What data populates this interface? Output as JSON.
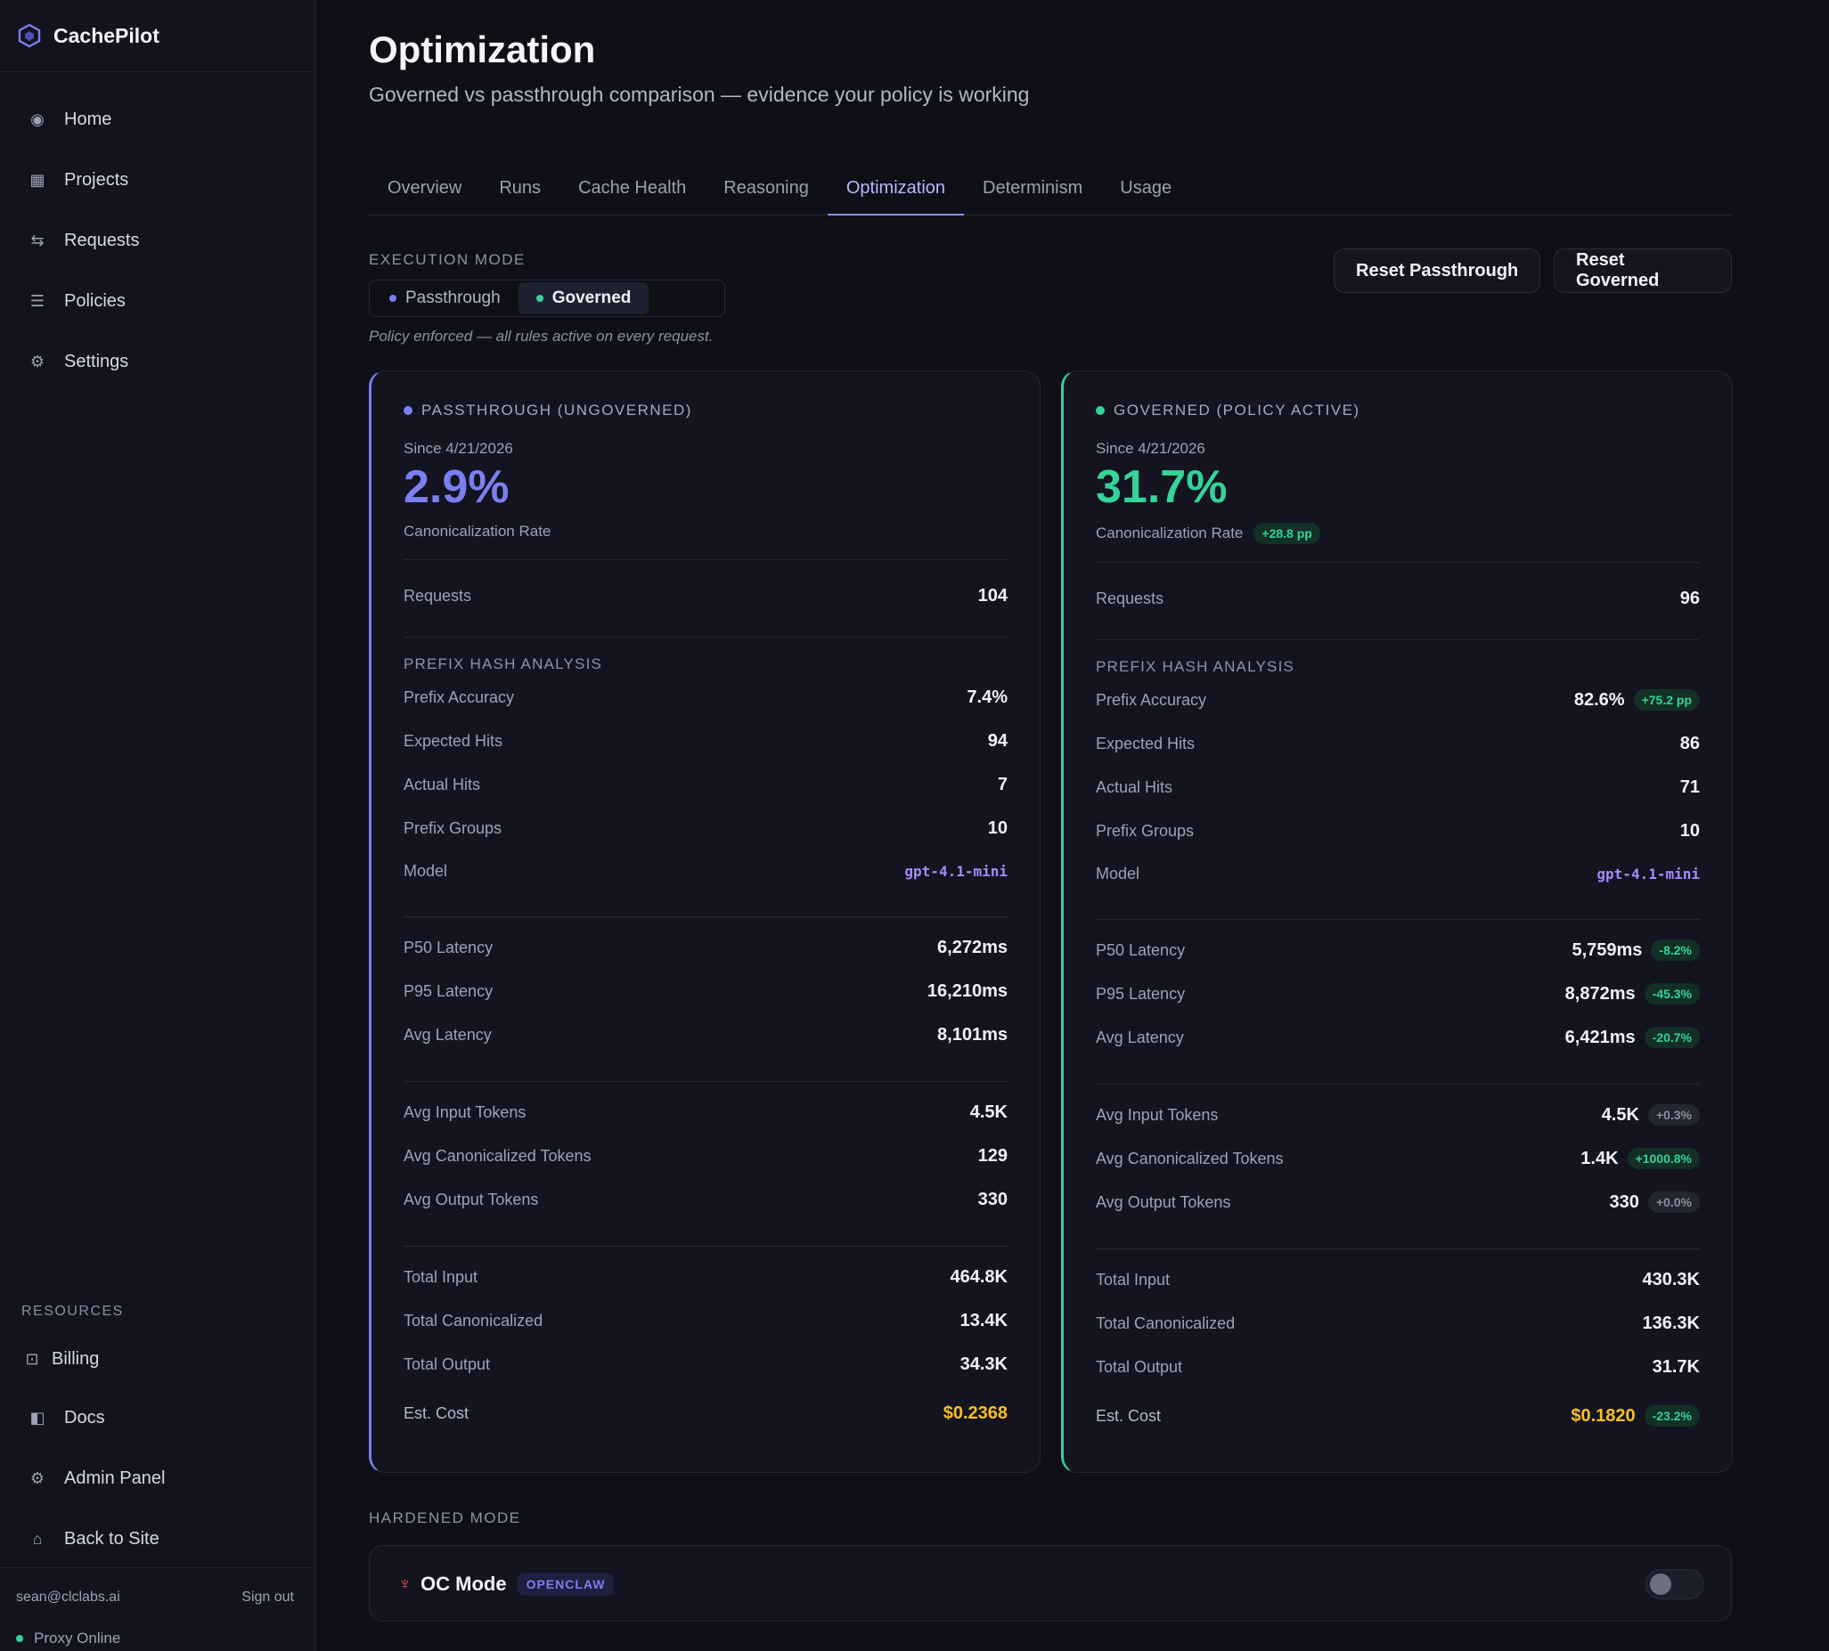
{
  "app": {
    "name": "CachePilot"
  },
  "sidebar": {
    "items": [
      {
        "label": "Home",
        "icon": "home-icon"
      },
      {
        "label": "Projects",
        "icon": "grid-icon"
      },
      {
        "label": "Requests",
        "icon": "requests-icon"
      },
      {
        "label": "Policies",
        "icon": "list-icon"
      },
      {
        "label": "Settings",
        "icon": "gear-icon"
      }
    ],
    "resources_label": "RESOURCES",
    "resources": [
      {
        "label": "Billing",
        "icon": "billing-icon"
      },
      {
        "label": "Docs",
        "icon": "docs-icon"
      },
      {
        "label": "Admin Panel",
        "icon": "gear-icon"
      },
      {
        "label": "Back to Site",
        "icon": "house-icon"
      }
    ],
    "user_email": "sean@clclabs.ai",
    "sign_out": "Sign out",
    "proxy_status": "Proxy Online"
  },
  "page": {
    "title": "Optimization",
    "subtitle": "Governed vs passthrough comparison — evidence your policy is working"
  },
  "tabs": [
    "Overview",
    "Runs",
    "Cache Health",
    "Reasoning",
    "Optimization",
    "Determinism",
    "Usage"
  ],
  "active_tab": "Optimization",
  "execution": {
    "label": "EXECUTION MODE",
    "options": [
      "Passthrough",
      "Governed"
    ],
    "selected": "Governed",
    "note": "Policy enforced — all rules active on every request.",
    "reset_passthrough": "Reset Passthrough",
    "reset_governed": "Reset Governed"
  },
  "passthrough": {
    "heading": "PASSTHROUGH (UNGOVERNED)",
    "since": "Since 4/21/2026",
    "rate": "2.9%",
    "rate_label": "Canonicalization Rate",
    "requests_label": "Requests",
    "requests": "104",
    "prefix_label": "PREFIX HASH ANALYSIS",
    "prefix_accuracy": "7.4%",
    "expected_hits": "94",
    "actual_hits": "7",
    "prefix_groups": "10",
    "model": "gpt-4.1-mini",
    "p50": "6,272ms",
    "p95": "16,210ms",
    "avg_latency": "8,101ms",
    "avg_input": "4.5K",
    "avg_canon": "129",
    "avg_output": "330",
    "total_input": "464.8K",
    "total_canon": "13.4K",
    "total_output": "34.3K",
    "est_cost": "$0.2368"
  },
  "governed": {
    "heading": "GOVERNED (POLICY ACTIVE)",
    "since": "Since 4/21/2026",
    "rate": "31.7%",
    "rate_label": "Canonicalization Rate",
    "rate_delta": "+28.8 pp",
    "requests_label": "Requests",
    "requests": "96",
    "prefix_label": "PREFIX HASH ANALYSIS",
    "prefix_accuracy": "82.6%",
    "prefix_accuracy_delta": "+75.2 pp",
    "expected_hits": "86",
    "actual_hits": "71",
    "prefix_groups": "10",
    "model": "gpt-4.1-mini",
    "p50": "5,759ms",
    "p50_delta": "-8.2%",
    "p95": "8,872ms",
    "p95_delta": "-45.3%",
    "avg_latency": "6,421ms",
    "avg_latency_delta": "-20.7%",
    "avg_input": "4.5K",
    "avg_input_delta": "+0.3%",
    "avg_canon": "1.4K",
    "avg_canon_delta": "+1000.8%",
    "avg_output": "330",
    "avg_output_delta": "+0.0%",
    "total_input": "430.3K",
    "total_canon": "136.3K",
    "total_output": "31.7K",
    "est_cost": "$0.1820",
    "est_cost_delta": "-23.2%"
  },
  "labels": {
    "prefix_accuracy": "Prefix Accuracy",
    "expected_hits": "Expected Hits",
    "actual_hits": "Actual Hits",
    "prefix_groups": "Prefix Groups",
    "model": "Model",
    "p50": "P50 Latency",
    "p95": "P95 Latency",
    "avg_latency": "Avg Latency",
    "avg_input": "Avg Input Tokens",
    "avg_canon": "Avg Canonicalized Tokens",
    "avg_output": "Avg Output Tokens",
    "total_input": "Total Input",
    "total_canon": "Total Canonicalized",
    "total_output": "Total Output",
    "est_cost": "Est. Cost"
  },
  "hardened": {
    "label": "HARDENED MODE",
    "title": "OC Mode",
    "badge": "OPENCLAW",
    "enabled": false
  },
  "colors": {
    "accent": "#7b7ff0",
    "governed": "#34d399",
    "cost": "#fbbf24",
    "model": "#a78bfa"
  }
}
